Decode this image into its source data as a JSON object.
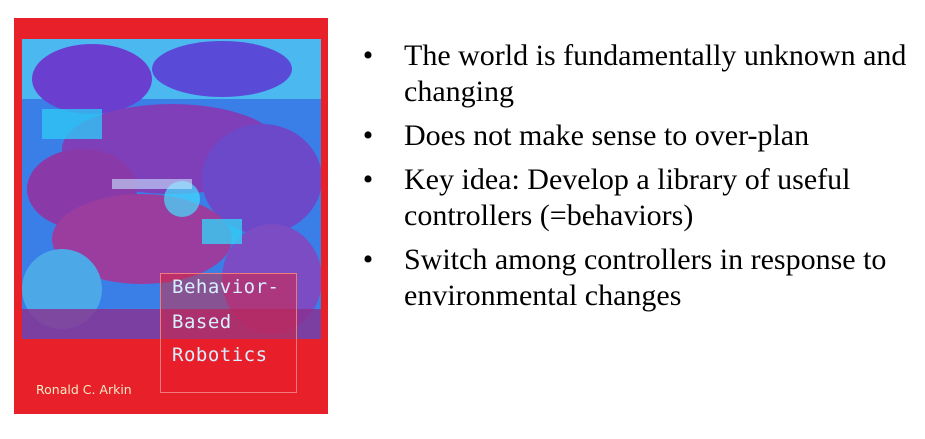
{
  "book": {
    "cover_color": "#e8202a",
    "title_lines": [
      "Behavior-",
      "Based",
      "Robotics"
    ],
    "author": "Ronald C. Arkin",
    "small_subtitle": "",
    "art": "blue-purple-robot-collage-image"
  },
  "bullets": {
    "marker": "•",
    "items": [
      "The world is fundamentally unknown and changing",
      "Does not make sense to over-plan",
      "Key idea: Develop a library of useful controllers (=behaviors)",
      "Switch among controllers in response to environmental changes"
    ]
  }
}
